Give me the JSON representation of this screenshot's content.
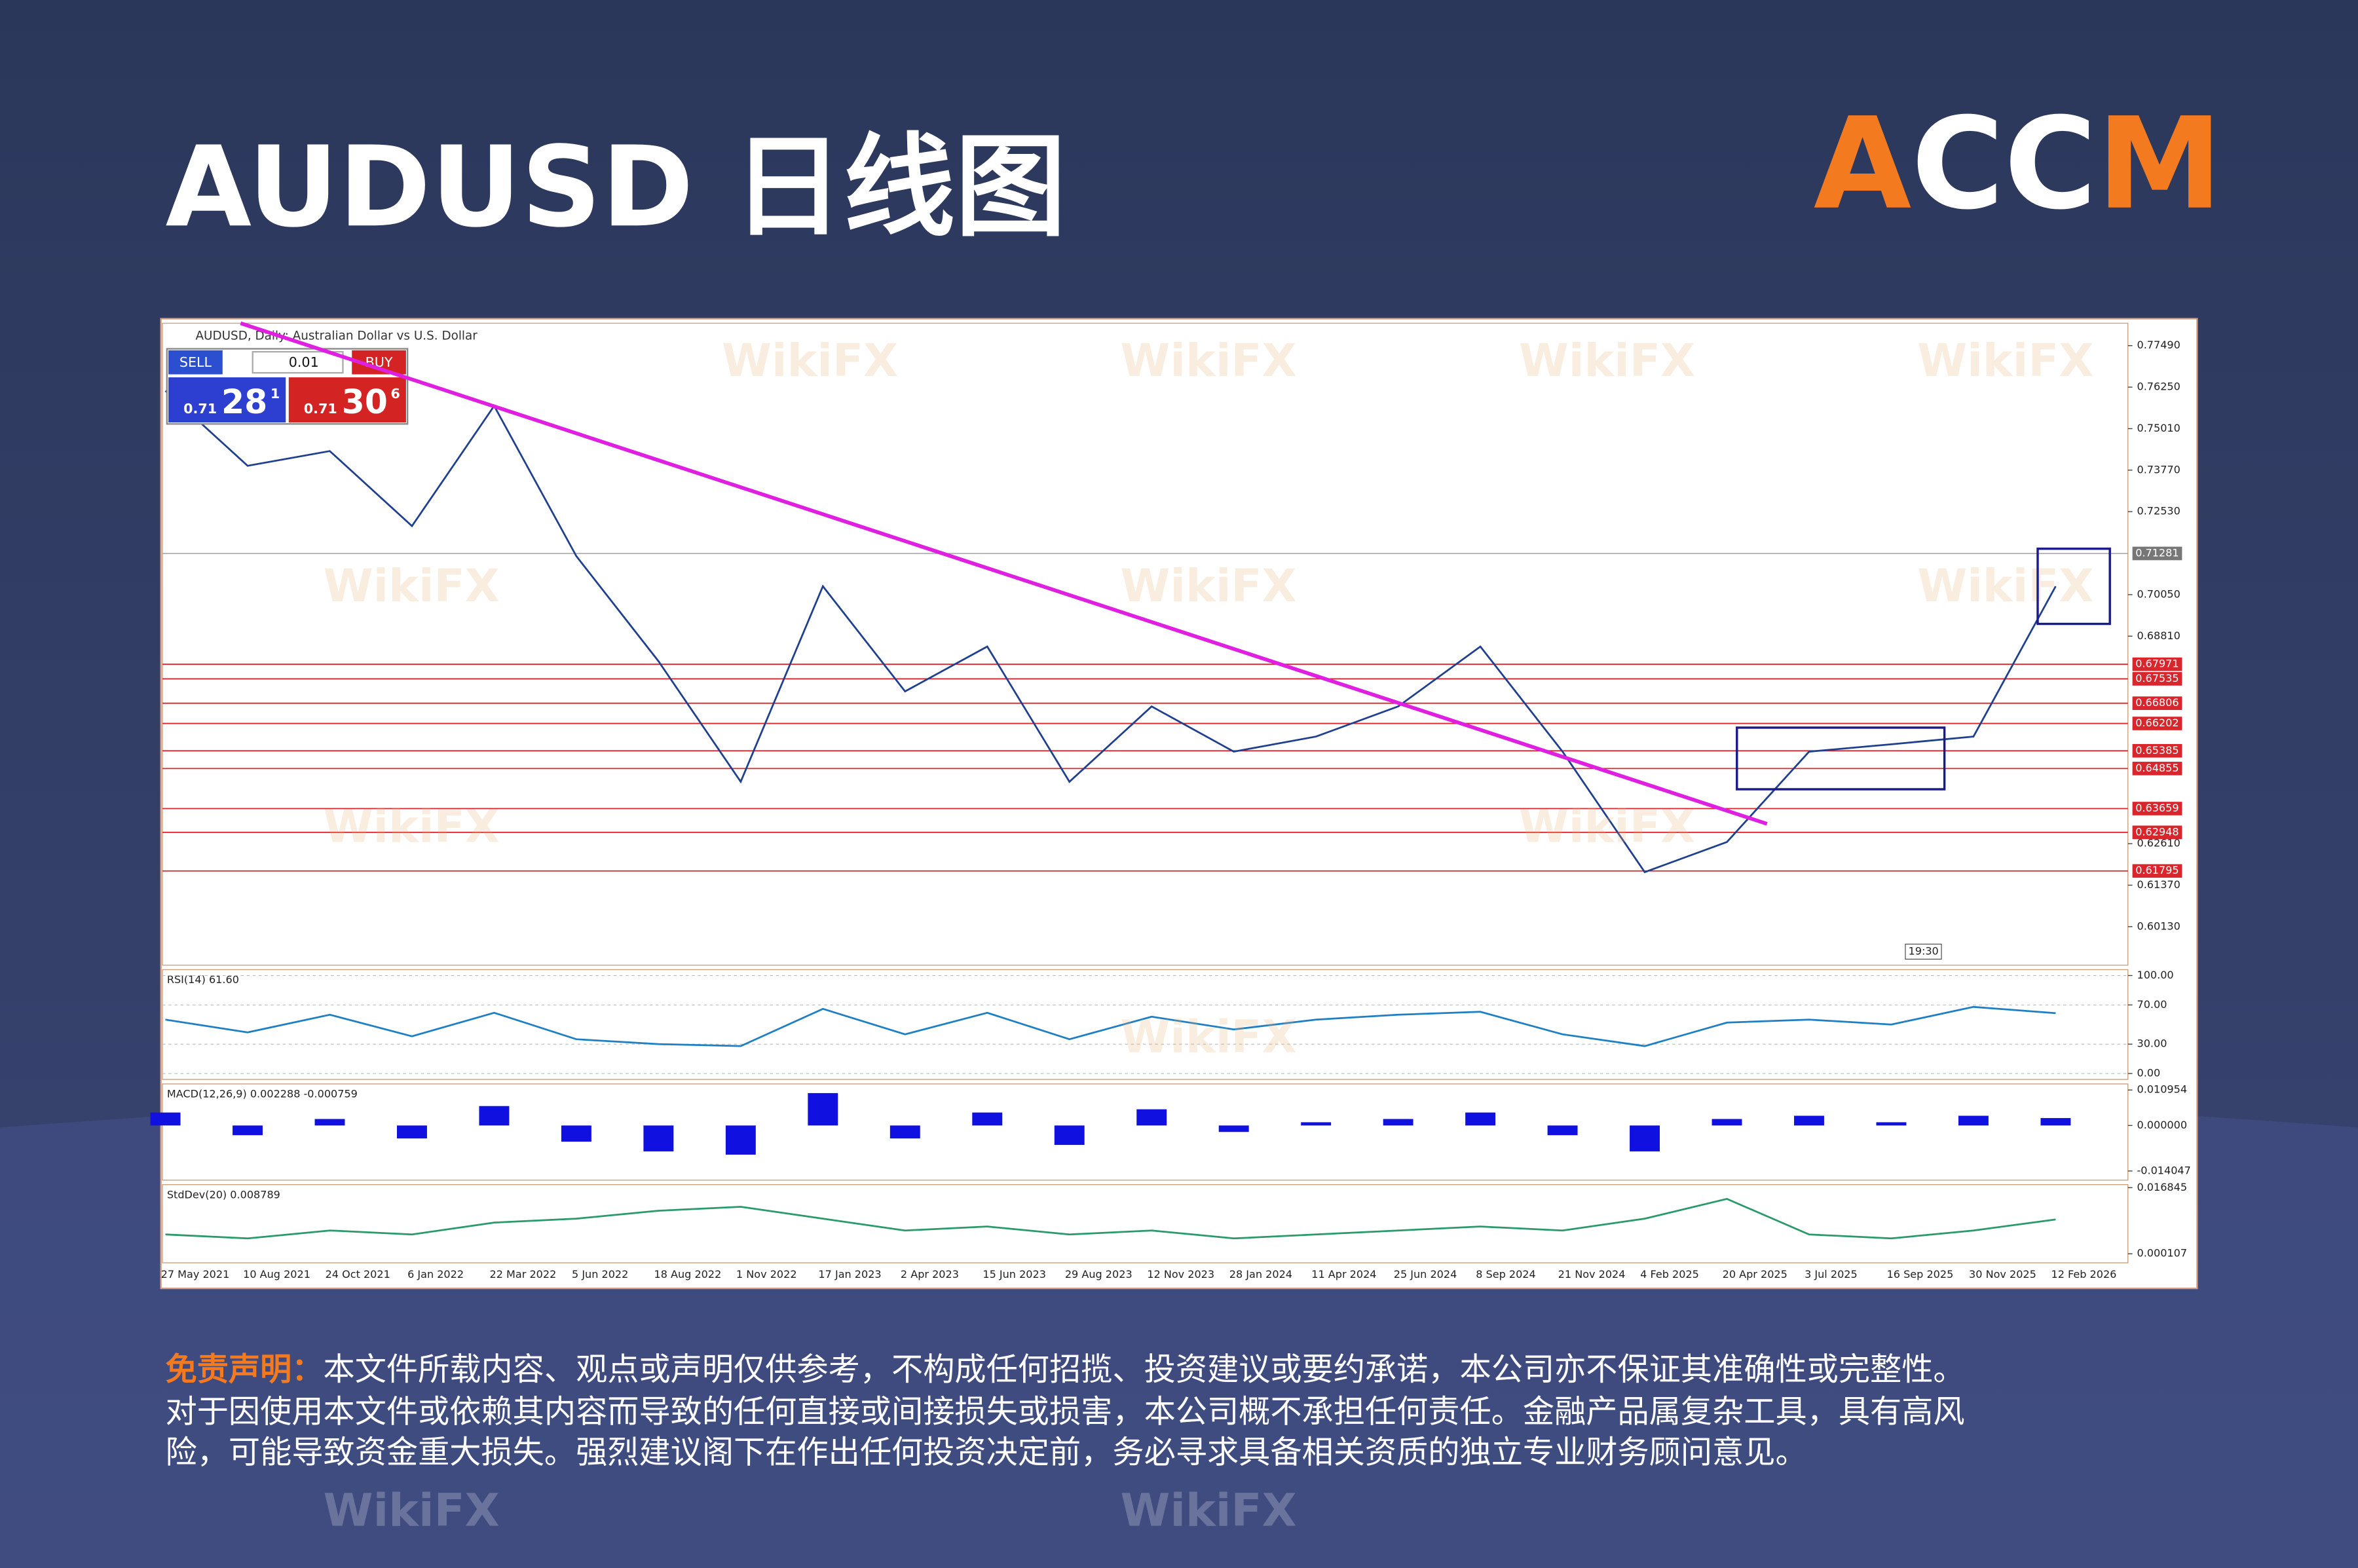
{
  "header": {
    "title": "AUDUSD 日线图",
    "logo": [
      "A",
      "CC",
      "M"
    ]
  },
  "watermark": "WikiFX",
  "trade_panel": {
    "sell": "SELL",
    "buy": "BUY",
    "lot": "0.01",
    "sell_price": [
      "0.71",
      "28",
      "1"
    ],
    "buy_price": [
      "0.71",
      "30",
      "6"
    ]
  },
  "chart_data": [
    {
      "type": "line",
      "title": "AUDUSD, Daily: Australian Dollar vs U.S. Dollar",
      "categories": [
        "27 May 2021",
        "10 Aug 2021",
        "24 Oct 2021",
        "6 Jan 2022",
        "22 Mar 2022",
        "5 Jun 2022",
        "18 Aug 2022",
        "1 Nov 2022",
        "17 Jan 2023",
        "2 Apr 2023",
        "15 Jun 2023",
        "29 Aug 2023",
        "12 Nov 2023",
        "28 Jan 2024",
        "11 Apr 2024",
        "25 Jun 2024",
        "8 Sep 2024",
        "21 Nov 2024",
        "4 Feb 2025",
        "20 Apr 2025",
        "3 Jul 2025",
        "16 Sep 2025",
        "30 Nov 2025",
        "12 Feb 2026"
      ],
      "values": [
        0.7614,
        0.739,
        0.7434,
        0.721,
        0.7569,
        0.712,
        0.6806,
        0.6446,
        0.703,
        0.6716,
        0.685,
        0.6446,
        0.6671,
        0.6536,
        0.6581,
        0.6671,
        0.685,
        0.6536,
        0.6176,
        0.6266,
        0.6536,
        0.6558,
        0.6581,
        0.703
      ],
      "color": "#1f3f8f",
      "ylim": [
        0.5898,
        0.7816
      ],
      "yticks": [
        {
          "value": 0.7749,
          "label": "0.77490"
        },
        {
          "value": 0.7625,
          "label": "0.76250"
        },
        {
          "value": 0.7501,
          "label": "0.75010"
        },
        {
          "value": 0.7377,
          "label": "0.73770"
        },
        {
          "value": 0.7253,
          "label": "0.72530"
        },
        {
          "value": 0.7005,
          "label": "0.70050"
        },
        {
          "value": 0.6881,
          "label": "0.68810"
        },
        {
          "value": 0.6261,
          "label": "0.62610"
        },
        {
          "value": 0.6137,
          "label": "0.61370"
        },
        {
          "value": 0.6013,
          "label": "0.60130"
        }
      ],
      "levels": [
        0.67971,
        0.67535,
        0.66806,
        0.66202,
        0.65385,
        0.64855,
        0.63659,
        0.62948,
        0.61795
      ],
      "level_color": "#d9262c",
      "current_price": 0.71281,
      "time_label": "19:30"
    },
    {
      "type": "line",
      "title": "RSI(14) 61.60",
      "values": [
        55,
        42,
        60,
        38,
        62,
        35,
        30,
        28,
        66,
        40,
        62,
        35,
        58,
        45,
        55,
        60,
        63,
        40,
        28,
        52,
        55,
        50,
        68,
        61.6
      ],
      "color": "#1e7fc4",
      "ylim": [
        -6,
        106
      ],
      "yticks": [
        {
          "value": 100,
          "label": "100.00"
        },
        {
          "value": 70,
          "label": "70.00"
        },
        {
          "value": 30,
          "label": "30.00"
        },
        {
          "value": 0,
          "label": "0.00"
        }
      ]
    },
    {
      "type": "bar",
      "title": "MACD(12,26,9) 0.002288 -0.000759",
      "values": [
        0.004,
        -0.003,
        0.002,
        -0.004,
        0.006,
        -0.005,
        -0.008,
        -0.009,
        0.01,
        -0.004,
        0.004,
        -0.006,
        0.005,
        -0.002,
        0.001,
        0.002,
        0.004,
        -0.003,
        -0.008,
        0.002,
        0.003,
        0.001,
        0.003,
        0.002288
      ],
      "color": "#1010e0",
      "ylim": [
        -0.01687,
        0.01283
      ],
      "yticks": [
        {
          "value": 0.010954,
          "label": "0.010954"
        },
        {
          "value": 0,
          "label": "0.000000"
        },
        {
          "value": -0.014047,
          "label": "-0.014047"
        }
      ]
    },
    {
      "type": "line",
      "title": "StdDev(20) 0.008789",
      "values": [
        0.005,
        0.004,
        0.006,
        0.005,
        0.008,
        0.009,
        0.011,
        0.012,
        0.009,
        0.006,
        0.007,
        0.005,
        0.006,
        0.004,
        0.005,
        0.006,
        0.007,
        0.006,
        0.009,
        0.014,
        0.005,
        0.004,
        0.006,
        0.008789
      ],
      "color": "#2a9a6a",
      "ylim": [
        -0.00218,
        0.017605
      ],
      "yticks": [
        0.016845,
        0.000107
      ]
    }
  ],
  "disclaimer": {
    "label": "免责声明：",
    "lines": [
      "本文件所载内容、观点或声明仅供参考，不构成任何招揽、投资建议或要约承诺，本公司亦不保证其准确性或完整性。",
      "对于因使用本文件或依赖其内容而导致的任何直接或间接损失或损害，本公司概不承担任何责任。金融产品属复杂工具，具有高风",
      "险，可能导致资金重大损失。强烈建议阁下在作出任何投资决定前，务必寻求具备相关资质的独立专业财务顾问意见。"
    ]
  }
}
